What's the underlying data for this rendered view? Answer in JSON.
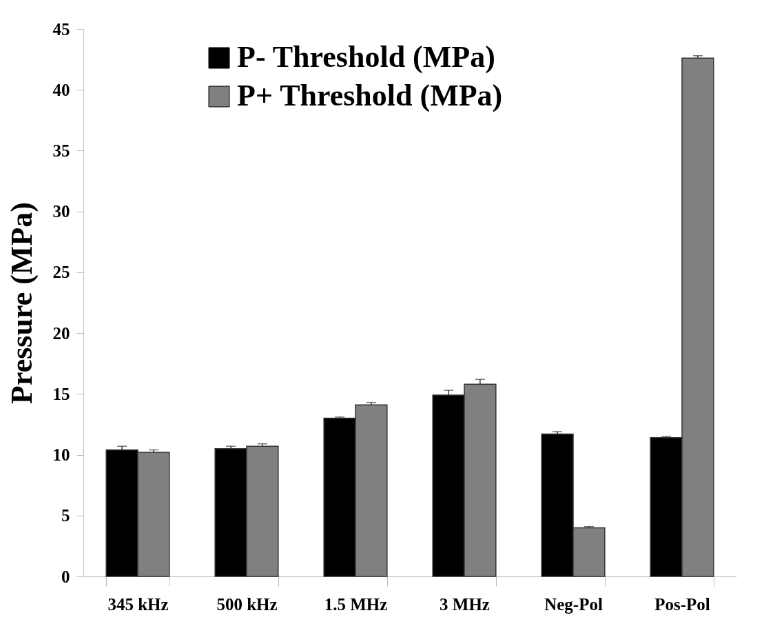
{
  "chart_data": {
    "type": "bar",
    "ylabel": "Pressure (MPa)",
    "categories": [
      "345 kHz",
      "500 kHz",
      "1.5 MHz",
      "3 MHz",
      "Neg-Pol",
      "Pos-Pol"
    ],
    "series": [
      {
        "name": "P- Threshold (MPa)",
        "color": "#000000",
        "values": [
          10.4,
          10.5,
          13.0,
          14.9,
          11.7,
          11.4
        ],
        "errors": [
          [
            10.4,
            10.7
          ],
          [
            10.5,
            10.7
          ],
          [
            13.0,
            13.1
          ],
          [
            14.9,
            15.3
          ],
          [
            11.7,
            11.9
          ],
          [
            11.4,
            11.5
          ]
        ]
      },
      {
        "name": "P+ Threshold (MPa)",
        "color": "#808080",
        "values": [
          10.2,
          10.7,
          14.1,
          15.8,
          4.0,
          42.6
        ],
        "errors": [
          [
            10.2,
            10.4
          ],
          [
            10.7,
            10.9
          ],
          [
            14.1,
            14.3
          ],
          [
            15.8,
            16.2
          ],
          [
            4.0,
            4.1
          ],
          [
            42.6,
            42.8
          ]
        ]
      }
    ],
    "ylim": [
      0,
      45
    ],
    "yticks": [
      0,
      5,
      10,
      15,
      20,
      25,
      30,
      35,
      40,
      45
    ],
    "grid": false,
    "legend": "top left"
  }
}
